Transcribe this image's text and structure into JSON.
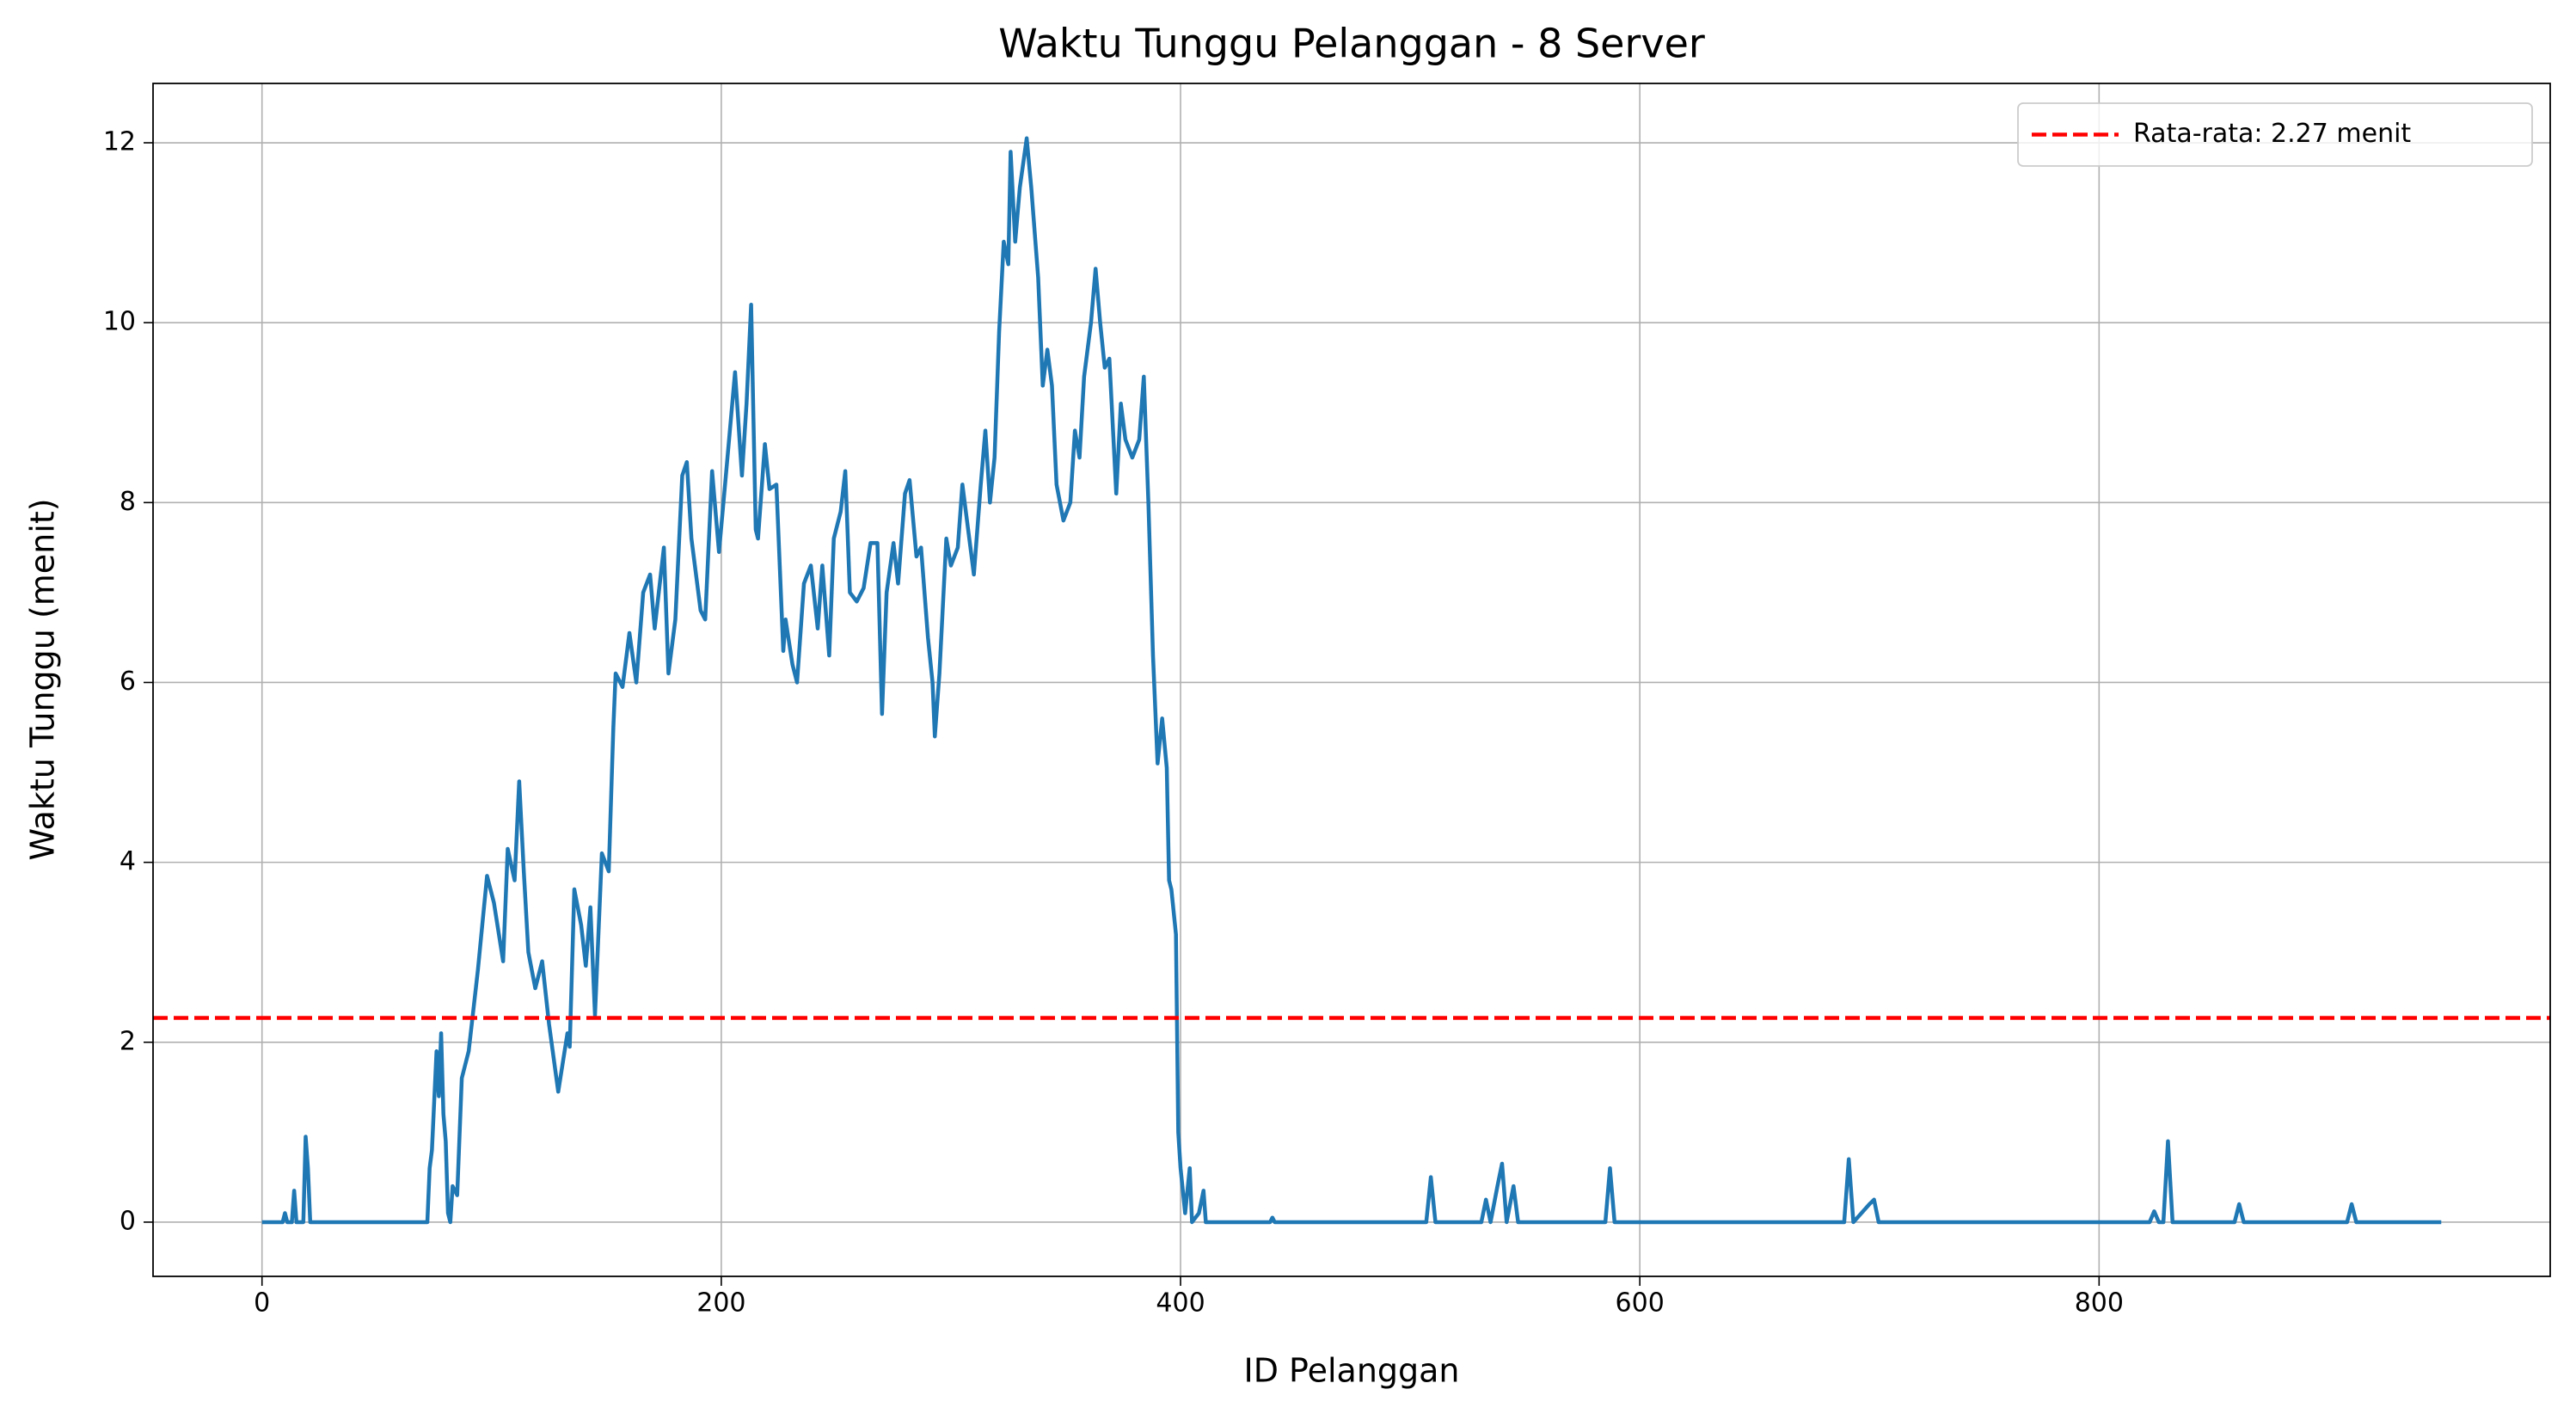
{
  "chart_data": {
    "type": "line",
    "title": "Waktu Tunggu Pelanggan - 8 Server",
    "x_label": "ID Pelanggan",
    "y_label": "Waktu Tunggu (menit)",
    "x": [
      0,
      9,
      10,
      11,
      13,
      14,
      15,
      18,
      19,
      20,
      21,
      72,
      73,
      74,
      76,
      77,
      78,
      79,
      80,
      81,
      82,
      83,
      85,
      87,
      90,
      94,
      98,
      101,
      105,
      107,
      110,
      112,
      114,
      116,
      119,
      122,
      125,
      129,
      133,
      134,
      136,
      139,
      141,
      143,
      145,
      148,
      151,
      153,
      154,
      157,
      160,
      163,
      166,
      169,
      171,
      175,
      177,
      180,
      183,
      185,
      187,
      191,
      193,
      196,
      199,
      202,
      206,
      209,
      211,
      213,
      215,
      216,
      219,
      221,
      224,
      227,
      228,
      231,
      233,
      236,
      239,
      242,
      244,
      247,
      249,
      252,
      254,
      256,
      259,
      262,
      265,
      268,
      270,
      272,
      275,
      277,
      280,
      282,
      285,
      287,
      290,
      292,
      293,
      295,
      298,
      300,
      303,
      305,
      308,
      310,
      313,
      315,
      317,
      319,
      321,
      323,
      325,
      326,
      328,
      330,
      333,
      335,
      338,
      340,
      342,
      344,
      346,
      349,
      352,
      354,
      356,
      358,
      361,
      363,
      365,
      367,
      369,
      372,
      374,
      376,
      379,
      382,
      384,
      386,
      388,
      390,
      392,
      394,
      395,
      396,
      398,
      399,
      400,
      402,
      404,
      405,
      408,
      410,
      411,
      439,
      440,
      441,
      507,
      509,
      511,
      531,
      533,
      535,
      538,
      540,
      542,
      545,
      547,
      549,
      585,
      587,
      589,
      689,
      691,
      693,
      700,
      702,
      704,
      822,
      824,
      826,
      828,
      830,
      832,
      859,
      861,
      863,
      908,
      910,
      912,
      949
    ],
    "series": [
      {
        "name": "Waktu Tunggu",
        "color": "#1f77b4",
        "values": [
          0,
          0,
          0.1,
          0,
          0,
          0.35,
          0,
          0,
          0.95,
          0.6,
          0,
          0,
          0.6,
          0.8,
          1.9,
          1.4,
          2.1,
          1.2,
          0.9,
          0.1,
          0,
          0.4,
          0.3,
          1.6,
          1.9,
          2.8,
          3.85,
          3.55,
          2.9,
          4.15,
          3.8,
          4.9,
          3.9,
          3.0,
          2.6,
          2.9,
          2.2,
          1.45,
          2.1,
          1.95,
          3.7,
          3.3,
          2.85,
          3.5,
          2.3,
          4.1,
          3.9,
          5.5,
          6.1,
          5.95,
          6.55,
          6.0,
          7.0,
          7.2,
          6.6,
          7.5,
          6.1,
          6.7,
          8.3,
          8.45,
          7.6,
          6.8,
          6.7,
          8.35,
          7.45,
          8.3,
          9.45,
          8.3,
          9.1,
          10.2,
          7.7,
          7.6,
          8.65,
          8.15,
          8.2,
          6.35,
          6.7,
          6.2,
          6.0,
          7.1,
          7.3,
          6.6,
          7.3,
          6.3,
          7.6,
          7.9,
          8.35,
          7.0,
          6.9,
          7.05,
          7.55,
          7.55,
          5.65,
          7.0,
          7.55,
          7.1,
          8.1,
          8.25,
          7.4,
          7.5,
          6.5,
          6.0,
          5.4,
          6.1,
          7.6,
          7.3,
          7.5,
          8.2,
          7.6,
          7.2,
          8.2,
          8.8,
          8.0,
          8.5,
          9.9,
          10.9,
          10.65,
          11.9,
          10.9,
          11.5,
          12.05,
          11.5,
          10.5,
          9.3,
          9.7,
          9.3,
          8.2,
          7.8,
          8.0,
          8.8,
          8.5,
          9.4,
          10.0,
          10.6,
          10.0,
          9.5,
          9.6,
          8.1,
          9.1,
          8.7,
          8.5,
          8.7,
          9.4,
          8.0,
          6.3,
          5.1,
          5.6,
          5.05,
          3.8,
          3.7,
          3.2,
          1.0,
          0.6,
          0.1,
          0.6,
          0,
          0.1,
          0.35,
          0,
          0,
          0.05,
          0,
          0,
          0.5,
          0,
          0,
          0.25,
          0,
          0.4,
          0.65,
          0,
          0.4,
          0,
          0,
          0,
          0.6,
          0,
          0,
          0.7,
          0,
          0.2,
          0.25,
          0,
          0,
          0.12,
          0,
          0,
          0.9,
          0,
          0,
          0.2,
          0,
          0,
          0.2,
          0,
          0
        ]
      }
    ],
    "reference_line": {
      "value": 2.27,
      "label": "Rata-rata: 2.27 menit",
      "color": "#ff0000"
    },
    "xlim": [
      -47.45,
      996.45
    ],
    "ylim": [
      -0.603,
      12.66
    ],
    "xticks": [
      0,
      200,
      400,
      600,
      800
    ],
    "yticks": [
      0,
      2,
      4,
      6,
      8,
      10,
      12
    ],
    "grid": true,
    "legend": "upper right"
  }
}
